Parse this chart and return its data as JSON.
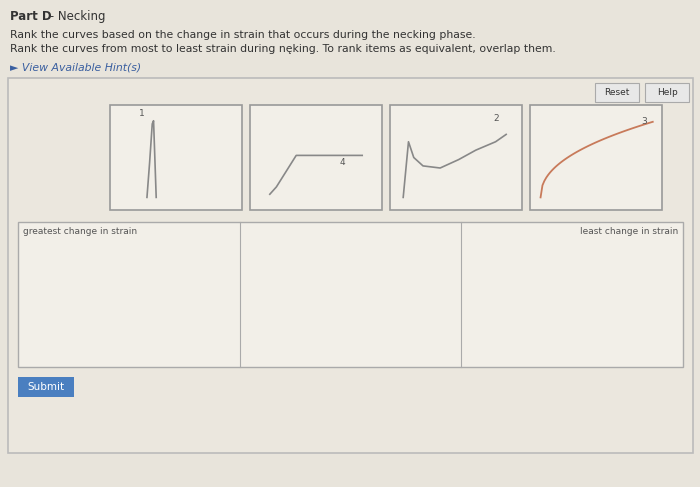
{
  "title_bold": "Part D",
  "title_rest": " - Necking",
  "instruction1": "Rank the curves based on the change in strain that occurs during the necking phase.",
  "instruction2": "Rank the curves from most to least strain during nęking. To rank items as equivalent, overlap them.",
  "hint_text": "► View Available Hint(s)",
  "bg_color": "#e8e4db",
  "panel_bg": "#ebe7de",
  "box_bg": "#f2efe8",
  "border_color": "#aaaaaa",
  "inner_border": "#999999",
  "curve_color_gray": "#888888",
  "curve_color_salmon": "#c87a5a",
  "label_color": "#555555",
  "hint_color": "#3a5fa0",
  "btn_bg": "#e8e8e8",
  "btn_border": "#aaaaaa",
  "submit_bg": "#4a7fc0",
  "submit_fg": "#ffffff",
  "ranking_labels": [
    "greatest change in strain",
    "least change in strain"
  ],
  "figsize": [
    7.0,
    4.87
  ],
  "dpi": 100
}
